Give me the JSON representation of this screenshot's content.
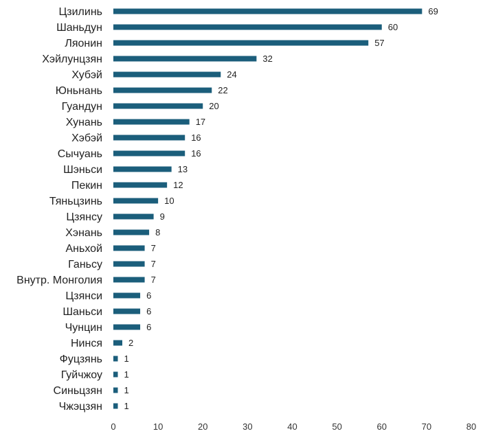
{
  "chart_data": {
    "type": "bar",
    "orientation": "horizontal",
    "title": "",
    "xlabel": "",
    "ylabel": "",
    "categories": [
      "Цзилинь",
      "Шаньдун",
      "Ляонин",
      "Хэйлунцзян",
      "Хубэй",
      "Юньнань",
      "Гуандун",
      "Хунань",
      "Хэбэй",
      "Сычуань",
      "Шэньси",
      "Пекин",
      "Тяньцзинь",
      "Цзянсу",
      "Хэнань",
      "Аньхой",
      "Ганьсу",
      "Внутр. Монголия",
      "Цзянси",
      "Шаньси",
      "Чунцин",
      "Нинся",
      "Фуцзянь",
      "Гуйчжоу",
      "Синьцзян",
      "Чжэцзян"
    ],
    "values": [
      69,
      60,
      57,
      32,
      24,
      22,
      20,
      17,
      16,
      16,
      13,
      12,
      10,
      9,
      8,
      7,
      7,
      7,
      6,
      6,
      6,
      2,
      1,
      1,
      1,
      1
    ],
    "xlim": [
      0,
      80
    ],
    "xticks": [
      0,
      10,
      20,
      30,
      40,
      50,
      60,
      70,
      80
    ],
    "grid": false,
    "legend": "none",
    "bar_color": "#1b5e7b",
    "data_labels": true
  }
}
